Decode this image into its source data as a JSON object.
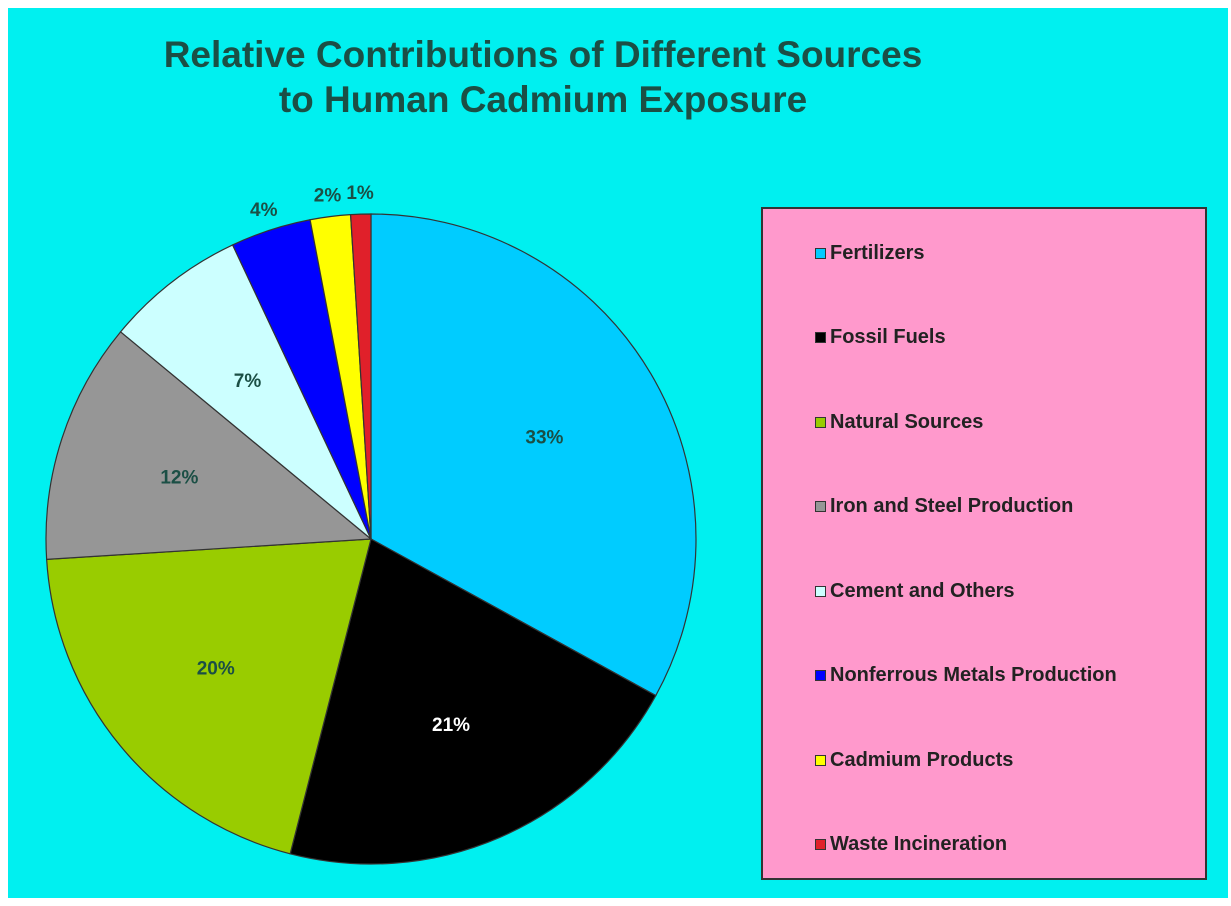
{
  "chart_data": {
    "type": "pie",
    "title": "Relative Contributions of Different Sources to Human Cadmium Exposure",
    "title_lines": [
      "Relative Contributions of Different Sources",
      "to Human Cadmium Exposure"
    ],
    "start_angle_deg": 0,
    "direction": "clockwise",
    "legend_position": "right",
    "slices": [
      {
        "label": "Fertilizers",
        "value": 33,
        "value_label": "33%",
        "color": "#00ccff",
        "label_color": "#1b4f45"
      },
      {
        "label": "Fossil Fuels",
        "value": 21,
        "value_label": "21%",
        "color": "#000000",
        "label_color": "#ffffff"
      },
      {
        "label": "Natural Sources",
        "value": 20,
        "value_label": "20%",
        "color": "#99cc00",
        "label_color": "#1b4f45"
      },
      {
        "label": "Iron and Steel Production",
        "value": 12,
        "value_label": "12%",
        "color": "#969696",
        "label_color": "#1b4f45"
      },
      {
        "label": "Cement and Others",
        "value": 7,
        "value_label": "7%",
        "color": "#ccffff",
        "label_color": "#1b4f45"
      },
      {
        "label": "Nonferrous Metals Production",
        "value": 4,
        "value_label": "4%",
        "color": "#0000ff",
        "label_color": "#1b4f45"
      },
      {
        "label": "Cadmium Products",
        "value": 2,
        "value_label": "2%",
        "color": "#ffff00",
        "label_color": "#1b4f45"
      },
      {
        "label": "Waste Incineration",
        "value": 1,
        "value_label": "1%",
        "color": "#e0202a",
        "label_color": "#1b4f45"
      }
    ]
  },
  "colors": {
    "background": "#00f0f0",
    "legend_background": "#ff99cc",
    "title": "#1b4f45"
  }
}
